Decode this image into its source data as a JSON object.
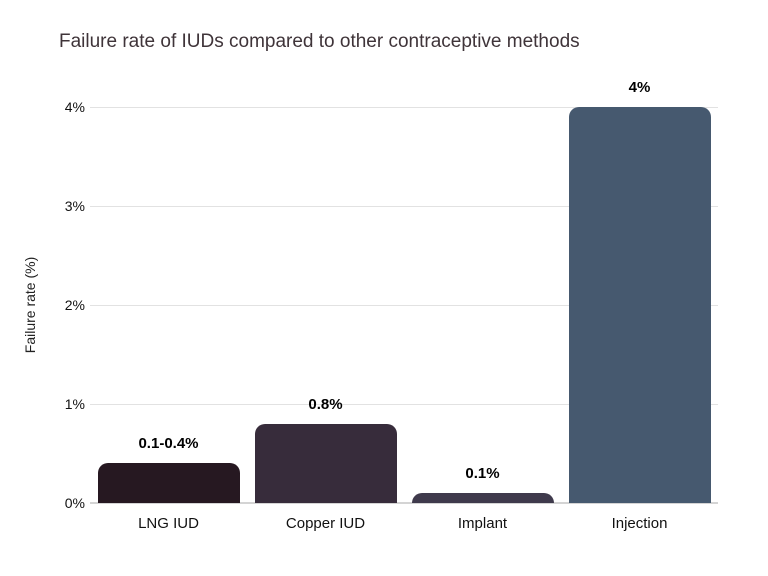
{
  "chart_data": {
    "type": "bar",
    "title": "Failure rate of IUDs compared to other contraceptive methods",
    "xlabel": "",
    "ylabel": "Failure rate (%)",
    "categories": [
      "LNG IUD",
      "Copper IUD",
      "Implant",
      "Injection"
    ],
    "values": [
      0.4,
      0.8,
      0.1,
      4
    ],
    "value_labels": [
      "0.1-0.4%",
      "0.8%",
      "0.1%",
      "4%"
    ],
    "bar_colors": [
      "#261821",
      "#372c3b",
      "#3f3a4c",
      "#46596f"
    ],
    "ylim": [
      0,
      4
    ],
    "yticks": [
      0,
      1,
      2,
      3,
      4
    ],
    "ytick_labels": [
      "0%",
      "1%",
      "2%",
      "3%",
      "4%"
    ],
    "grid": "horizontal",
    "legend": "none",
    "colors": {
      "background": "#ffffff",
      "gridline": "#e2e2e2",
      "axis_line": "#d4d4d4",
      "title_text": "#3f3439",
      "tick_text": "#111111",
      "value_label_text": "#000000"
    }
  }
}
